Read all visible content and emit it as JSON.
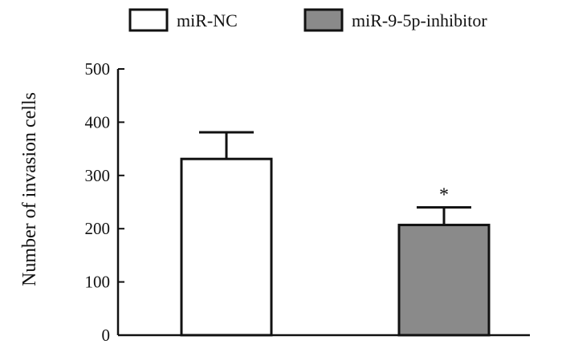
{
  "chart_data": {
    "type": "bar",
    "categories": [
      "miR-NC",
      "miR-9-5p-inhibitor"
    ],
    "values": [
      331,
      207
    ],
    "errors": [
      50,
      33
    ],
    "annotations": [
      "",
      "*"
    ],
    "ylabel": "Number of invasion cells",
    "xlabel": "",
    "ylim": [
      0,
      500
    ],
    "yticks": [
      0,
      100,
      200,
      300,
      400,
      500
    ],
    "legend": {
      "placement": "top",
      "entries": [
        {
          "label": "miR-NC",
          "color": "#ffffff"
        },
        {
          "label": "miR-9-5p-inhibitor",
          "color": "#8a8a8a"
        }
      ]
    },
    "colors": [
      "#ffffff",
      "#8a8a8a"
    ]
  }
}
